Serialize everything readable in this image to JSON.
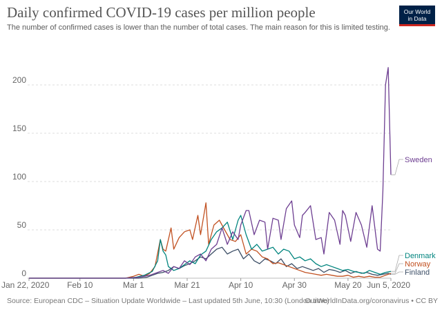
{
  "header": {
    "title": "Daily confirmed COVID-19 cases per million people",
    "subtitle": "The number of confirmed cases is lower than the number of total cases. The main reason for this is limited testing.",
    "logo_line1": "Our World",
    "logo_line2": "in Data"
  },
  "footer": {
    "source": "Source: European CDC – Situation Update Worldwide – Last updated 5th June, 10:30 (London time)",
    "credit": "OurWorldInData.org/coronavirus • CC BY"
  },
  "colors": {
    "brand_bg": "#002147",
    "brand_accent": "#ce261e",
    "grid": "#dddddd"
  },
  "chart_data": {
    "type": "line",
    "title": "Daily confirmed COVID-19 cases per million people",
    "x_start": "2020-01-22",
    "x_end": "2020-06-05",
    "xlim": [
      "2020-01-22",
      "2020-06-05"
    ],
    "ylim": [
      0,
      225
    ],
    "yticks": [
      0,
      50,
      100,
      150,
      200
    ],
    "xticks": [
      "Jan 22, 2020",
      "Feb 10",
      "Mar 1",
      "Mar 21",
      "Apr 10",
      "Apr 30",
      "May 20",
      "Jun 5, 2020"
    ],
    "xtick_dates": [
      "2020-01-22",
      "2020-02-10",
      "2020-03-01",
      "2020-03-21",
      "2020-04-10",
      "2020-04-30",
      "2020-05-20",
      "2020-06-05"
    ],
    "grid": "horizontal dashed",
    "legend": "labels at right end of lines",
    "series": [
      {
        "name": "Sweden",
        "color": "#6d3e91",
        "points": [
          [
            "2020-01-22",
            0
          ],
          [
            "2020-02-27",
            0
          ],
          [
            "2020-03-03",
            1
          ],
          [
            "2020-03-07",
            3
          ],
          [
            "2020-03-10",
            6
          ],
          [
            "2020-03-12",
            8
          ],
          [
            "2020-03-14",
            5
          ],
          [
            "2020-03-16",
            12
          ],
          [
            "2020-03-18",
            10
          ],
          [
            "2020-03-20",
            18
          ],
          [
            "2020-03-22",
            14
          ],
          [
            "2020-03-24",
            22
          ],
          [
            "2020-03-26",
            25
          ],
          [
            "2020-03-28",
            18
          ],
          [
            "2020-03-30",
            30
          ],
          [
            "2020-04-01",
            35
          ],
          [
            "2020-04-03",
            52
          ],
          [
            "2020-04-05",
            35
          ],
          [
            "2020-04-07",
            48
          ],
          [
            "2020-04-09",
            40
          ],
          [
            "2020-04-10",
            55
          ],
          [
            "2020-04-12",
            70
          ],
          [
            "2020-04-13",
            70
          ],
          [
            "2020-04-15",
            45
          ],
          [
            "2020-04-17",
            60
          ],
          [
            "2020-04-19",
            58
          ],
          [
            "2020-04-20",
            30
          ],
          [
            "2020-04-22",
            62
          ],
          [
            "2020-04-24",
            60
          ],
          [
            "2020-04-25",
            40
          ],
          [
            "2020-04-27",
            72
          ],
          [
            "2020-04-29",
            80
          ],
          [
            "2020-04-30",
            55
          ],
          [
            "2020-05-02",
            42
          ],
          [
            "2020-05-03",
            65
          ],
          [
            "2020-05-04",
            68
          ],
          [
            "2020-05-06",
            75
          ],
          [
            "2020-05-08",
            40
          ],
          [
            "2020-05-10",
            42
          ],
          [
            "2020-05-11",
            25
          ],
          [
            "2020-05-13",
            68
          ],
          [
            "2020-05-15",
            60
          ],
          [
            "2020-05-17",
            35
          ],
          [
            "2020-05-18",
            70
          ],
          [
            "2020-05-19",
            65
          ],
          [
            "2020-05-21",
            38
          ],
          [
            "2020-05-23",
            68
          ],
          [
            "2020-05-25",
            55
          ],
          [
            "2020-05-27",
            32
          ],
          [
            "2020-05-29",
            75
          ],
          [
            "2020-05-31",
            30
          ],
          [
            "2020-06-01",
            28
          ],
          [
            "2020-06-02",
            90
          ],
          [
            "2020-06-03",
            200
          ],
          [
            "2020-06-04",
            218
          ],
          [
            "2020-06-05",
            107
          ]
        ]
      },
      {
        "name": "Denmark",
        "color": "#00847e",
        "points": [
          [
            "2020-01-22",
            0
          ],
          [
            "2020-02-27",
            0
          ],
          [
            "2020-03-02",
            1
          ],
          [
            "2020-03-05",
            3
          ],
          [
            "2020-03-08",
            7
          ],
          [
            "2020-03-10",
            18
          ],
          [
            "2020-03-11",
            40
          ],
          [
            "2020-03-12",
            28
          ],
          [
            "2020-03-13",
            24
          ],
          [
            "2020-03-14",
            12
          ],
          [
            "2020-03-16",
            8
          ],
          [
            "2020-03-18",
            10
          ],
          [
            "2020-03-20",
            14
          ],
          [
            "2020-03-22",
            18
          ],
          [
            "2020-03-24",
            15
          ],
          [
            "2020-03-26",
            24
          ],
          [
            "2020-03-28",
            28
          ],
          [
            "2020-03-30",
            40
          ],
          [
            "2020-04-01",
            48
          ],
          [
            "2020-04-03",
            52
          ],
          [
            "2020-04-05",
            58
          ],
          [
            "2020-04-07",
            40
          ],
          [
            "2020-04-09",
            60
          ],
          [
            "2020-04-10",
            65
          ],
          [
            "2020-04-12",
            45
          ],
          [
            "2020-04-14",
            30
          ],
          [
            "2020-04-16",
            35
          ],
          [
            "2020-04-18",
            28
          ],
          [
            "2020-04-20",
            30
          ],
          [
            "2020-04-22",
            32
          ],
          [
            "2020-04-24",
            25
          ],
          [
            "2020-04-26",
            30
          ],
          [
            "2020-04-28",
            28
          ],
          [
            "2020-04-30",
            20
          ],
          [
            "2020-05-02",
            22
          ],
          [
            "2020-05-04",
            18
          ],
          [
            "2020-05-06",
            20
          ],
          [
            "2020-05-08",
            15
          ],
          [
            "2020-05-10",
            12
          ],
          [
            "2020-05-12",
            14
          ],
          [
            "2020-05-14",
            12
          ],
          [
            "2020-05-16",
            10
          ],
          [
            "2020-05-18",
            8
          ],
          [
            "2020-05-20",
            9
          ],
          [
            "2020-05-22",
            7
          ],
          [
            "2020-05-24",
            6
          ],
          [
            "2020-05-26",
            5
          ],
          [
            "2020-05-28",
            8
          ],
          [
            "2020-05-30",
            6
          ],
          [
            "2020-06-01",
            4
          ],
          [
            "2020-06-03",
            6
          ],
          [
            "2020-06-05",
            7
          ]
        ]
      },
      {
        "name": "Norway",
        "color": "#c15020",
        "points": [
          [
            "2020-01-22",
            0
          ],
          [
            "2020-02-27",
            0
          ],
          [
            "2020-03-01",
            2
          ],
          [
            "2020-03-03",
            4
          ],
          [
            "2020-03-05",
            2
          ],
          [
            "2020-03-07",
            5
          ],
          [
            "2020-03-09",
            12
          ],
          [
            "2020-03-11",
            40
          ],
          [
            "2020-03-12",
            30
          ],
          [
            "2020-03-13",
            28
          ],
          [
            "2020-03-15",
            52
          ],
          [
            "2020-03-16",
            30
          ],
          [
            "2020-03-18",
            42
          ],
          [
            "2020-03-20",
            48
          ],
          [
            "2020-03-22",
            50
          ],
          [
            "2020-03-23",
            40
          ],
          [
            "2020-03-25",
            65
          ],
          [
            "2020-03-26",
            45
          ],
          [
            "2020-03-28",
            78
          ],
          [
            "2020-03-29",
            35
          ],
          [
            "2020-03-31",
            55
          ],
          [
            "2020-04-02",
            60
          ],
          [
            "2020-04-04",
            50
          ],
          [
            "2020-04-06",
            40
          ],
          [
            "2020-04-08",
            38
          ],
          [
            "2020-04-10",
            45
          ],
          [
            "2020-04-12",
            25
          ],
          [
            "2020-04-14",
            30
          ],
          [
            "2020-04-16",
            28
          ],
          [
            "2020-04-18",
            22
          ],
          [
            "2020-04-20",
            20
          ],
          [
            "2020-04-22",
            15
          ],
          [
            "2020-04-24",
            16
          ],
          [
            "2020-04-26",
            14
          ],
          [
            "2020-04-28",
            12
          ],
          [
            "2020-04-30",
            10
          ],
          [
            "2020-05-02",
            8
          ],
          [
            "2020-05-04",
            6
          ],
          [
            "2020-05-06",
            5
          ],
          [
            "2020-05-08",
            4
          ],
          [
            "2020-05-10",
            3
          ],
          [
            "2020-05-12",
            4
          ],
          [
            "2020-05-14",
            3
          ],
          [
            "2020-05-16",
            2
          ],
          [
            "2020-05-18",
            2
          ],
          [
            "2020-05-20",
            3
          ],
          [
            "2020-05-22",
            1
          ],
          [
            "2020-05-24",
            2
          ],
          [
            "2020-05-26",
            1
          ],
          [
            "2020-05-28",
            2
          ],
          [
            "2020-05-30",
            1
          ],
          [
            "2020-06-01",
            1
          ],
          [
            "2020-06-03",
            3
          ],
          [
            "2020-06-05",
            5
          ]
        ]
      },
      {
        "name": "Finland",
        "color": "#3c4e66",
        "points": [
          [
            "2020-01-22",
            0
          ],
          [
            "2020-02-27",
            0
          ],
          [
            "2020-03-03",
            0
          ],
          [
            "2020-03-06",
            1
          ],
          [
            "2020-03-08",
            3
          ],
          [
            "2020-03-10",
            5
          ],
          [
            "2020-03-12",
            6
          ],
          [
            "2020-03-14",
            8
          ],
          [
            "2020-03-16",
            12
          ],
          [
            "2020-03-18",
            10
          ],
          [
            "2020-03-20",
            13
          ],
          [
            "2020-03-22",
            15
          ],
          [
            "2020-03-24",
            18
          ],
          [
            "2020-03-26",
            22
          ],
          [
            "2020-03-28",
            20
          ],
          [
            "2020-03-30",
            25
          ],
          [
            "2020-04-01",
            30
          ],
          [
            "2020-04-03",
            32
          ],
          [
            "2020-04-05",
            25
          ],
          [
            "2020-04-07",
            28
          ],
          [
            "2020-04-09",
            30
          ],
          [
            "2020-04-11",
            20
          ],
          [
            "2020-04-13",
            25
          ],
          [
            "2020-04-15",
            18
          ],
          [
            "2020-04-17",
            15
          ],
          [
            "2020-04-19",
            20
          ],
          [
            "2020-04-21",
            18
          ],
          [
            "2020-04-23",
            15
          ],
          [
            "2020-04-25",
            20
          ],
          [
            "2020-04-27",
            12
          ],
          [
            "2020-04-29",
            15
          ],
          [
            "2020-05-01",
            10
          ],
          [
            "2020-05-03",
            12
          ],
          [
            "2020-05-05",
            10
          ],
          [
            "2020-05-07",
            8
          ],
          [
            "2020-05-09",
            10
          ],
          [
            "2020-05-11",
            6
          ],
          [
            "2020-05-13",
            9
          ],
          [
            "2020-05-15",
            8
          ],
          [
            "2020-05-17",
            6
          ],
          [
            "2020-05-19",
            8
          ],
          [
            "2020-05-21",
            5
          ],
          [
            "2020-05-23",
            7
          ],
          [
            "2020-05-25",
            5
          ],
          [
            "2020-05-27",
            6
          ],
          [
            "2020-05-29",
            4
          ],
          [
            "2020-05-31",
            3
          ],
          [
            "2020-06-02",
            4
          ],
          [
            "2020-06-04",
            5
          ],
          [
            "2020-06-05",
            4
          ]
        ]
      }
    ]
  }
}
